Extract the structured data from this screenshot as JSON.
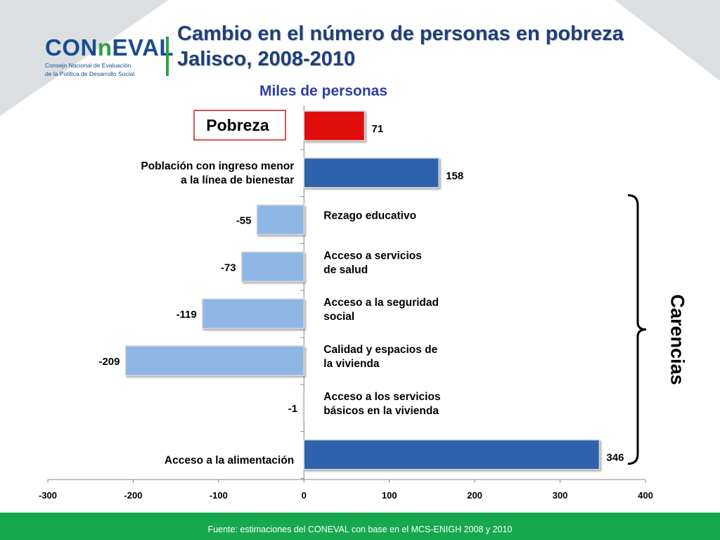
{
  "header": {
    "logo_word_a": "CON",
    "logo_word_b": "EVAL",
    "logo_sub_1": "Consejo Nacional de Evaluación",
    "logo_sub_2": "de la Política de Desarrollo Social",
    "title_line1": "Cambio en el número de personas en pobreza",
    "title_line2": "Jalisco, 2008-2010",
    "subtitle": "Miles de personas"
  },
  "footer": {
    "source": "Fuente: estimaciones del CONEVAL con base en el MCS-ENIGH 2008 y 2010"
  },
  "carencias_label": "Carencias",
  "colors": {
    "red": "#e01010",
    "dark_blue": "#2d62ad",
    "light_blue": "#8fb7e6",
    "footer_green": "#17a84e"
  },
  "chart_data": {
    "type": "bar",
    "orientation": "horizontal",
    "title": "Cambio en el número de personas en pobreza Jalisco, 2008-2010",
    "subtitle": "Miles de personas",
    "categories": [
      [
        "Pobreza"
      ],
      [
        "Población con ingreso menor",
        "a la línea de bienestar"
      ],
      [
        "Rezago educativo"
      ],
      [
        "Acceso a servicios",
        " de salud"
      ],
      [
        "Acceso a  la seguridad",
        "social"
      ],
      [
        "Calidad y espacios de",
        "la vivienda"
      ],
      [
        "Acceso a los servicios",
        "básicos en la vivienda"
      ],
      [
        "Acceso a la alimentación"
      ]
    ],
    "values": [
      71,
      158,
      -55,
      -73,
      -119,
      -209,
      -1,
      346
    ],
    "value_labels": [
      "71",
      "158",
      "-55",
      "-73",
      "-119",
      "-209",
      "-1",
      "346"
    ],
    "bar_colors": [
      "#e01010",
      "#2d62ad",
      "#8fb7e6",
      "#8fb7e6",
      "#8fb7e6",
      "#8fb7e6",
      "#8fb7e6",
      "#2d62ad"
    ],
    "xlim": [
      -300,
      400
    ],
    "xticks": [
      -300,
      -200,
      -100,
      0,
      100,
      200,
      300,
      400
    ],
    "xtick_labels": [
      "-300",
      "-200",
      "-100",
      "0",
      "100",
      "200",
      "300",
      "400"
    ],
    "grid": false,
    "bracket_group": {
      "label": "Carencias"
    },
    "boxed_category": "Pobreza"
  }
}
